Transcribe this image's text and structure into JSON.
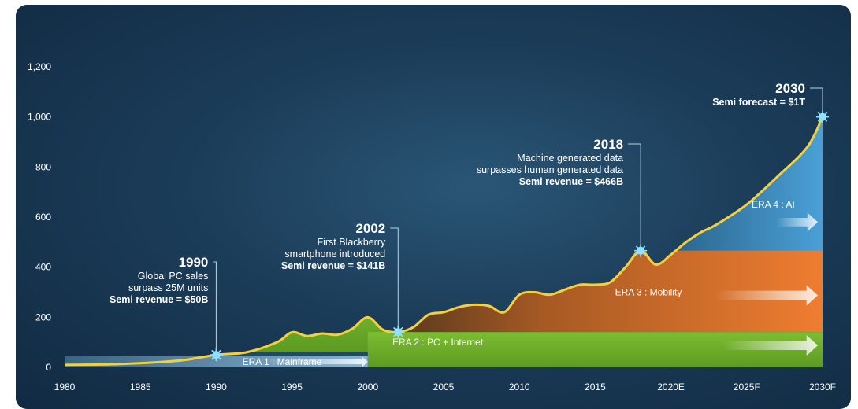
{
  "chart_data": {
    "type": "area",
    "x_ticks": [
      "1980",
      "1985",
      "1990",
      "1995",
      "2000",
      "2005",
      "2010",
      "2015",
      "2020E",
      "2025F",
      "2030F"
    ],
    "y_ticks": [
      "0",
      "200",
      "400",
      "600",
      "800",
      "1,000",
      "1,200"
    ],
    "ylim": [
      0,
      1200
    ],
    "xlim": [
      1980,
      2030
    ],
    "grid": false,
    "series": [
      {
        "values": [
          [
            1980,
            10
          ],
          [
            1983,
            12
          ],
          [
            1986,
            20
          ],
          [
            1988,
            30
          ],
          [
            1990,
            50
          ],
          [
            1992,
            60
          ],
          [
            1994,
            100
          ],
          [
            1995,
            140
          ],
          [
            1996,
            125
          ],
          [
            1997,
            135
          ],
          [
            1998,
            130
          ],
          [
            1999,
            155
          ],
          [
            2000,
            200
          ],
          [
            2001,
            150
          ],
          [
            2002,
            141
          ],
          [
            2003,
            160
          ],
          [
            2004,
            210
          ],
          [
            2005,
            220
          ],
          [
            2006,
            240
          ],
          [
            2007,
            250
          ],
          [
            2008,
            245
          ],
          [
            2009,
            220
          ],
          [
            2010,
            290
          ],
          [
            2011,
            300
          ],
          [
            2012,
            290
          ],
          [
            2013,
            310
          ],
          [
            2014,
            330
          ],
          [
            2015,
            330
          ],
          [
            2016,
            340
          ],
          [
            2017,
            400
          ],
          [
            2018,
            466
          ],
          [
            2019,
            410
          ],
          [
            2020,
            450
          ],
          [
            2021,
            500
          ],
          [
            2022,
            540
          ],
          [
            2023,
            570
          ],
          [
            2025,
            650
          ],
          [
            2027,
            760
          ],
          [
            2029,
            880
          ],
          [
            2030,
            1000
          ]
        ]
      }
    ],
    "annotations": [
      {
        "x": 1990,
        "y": 50,
        "year": "1990",
        "lines": [
          "Global PC sales",
          "surpass 25M units"
        ],
        "bold": "Semi revenue = $50B"
      },
      {
        "x": 2002,
        "y": 141,
        "year": "2002",
        "lines": [
          "First Blackberry",
          "smartphone introduced"
        ],
        "bold": "Semi revenue = $141B"
      },
      {
        "x": 2018,
        "y": 466,
        "year": "2018",
        "lines": [
          "Machine generated data",
          "surpasses human generated data"
        ],
        "bold": "Semi revenue = $466B"
      },
      {
        "x": 2030,
        "y": 1000,
        "year": "2030",
        "lines": [],
        "bold": "Semi forecast = $1T"
      }
    ],
    "eras": [
      {
        "label": "ERA 1 : Mainframe",
        "from": 1980,
        "to": 2000,
        "color": "#8fb9d6"
      },
      {
        "label": "ERA 2 : PC + Internet",
        "from": 2000,
        "to": 2030,
        "color": "#7cb82f"
      },
      {
        "label": "ERA 3 : Mobility",
        "from": 2002,
        "to": 2030,
        "color": "#e8782f"
      },
      {
        "label": "ERA 4 : AI",
        "from": 2018,
        "to": 2030,
        "color": "#3f8fc4"
      }
    ],
    "colors": {
      "line": "#f4d03f",
      "marker": "#8fe1ff",
      "background": "#1b3c58"
    }
  }
}
